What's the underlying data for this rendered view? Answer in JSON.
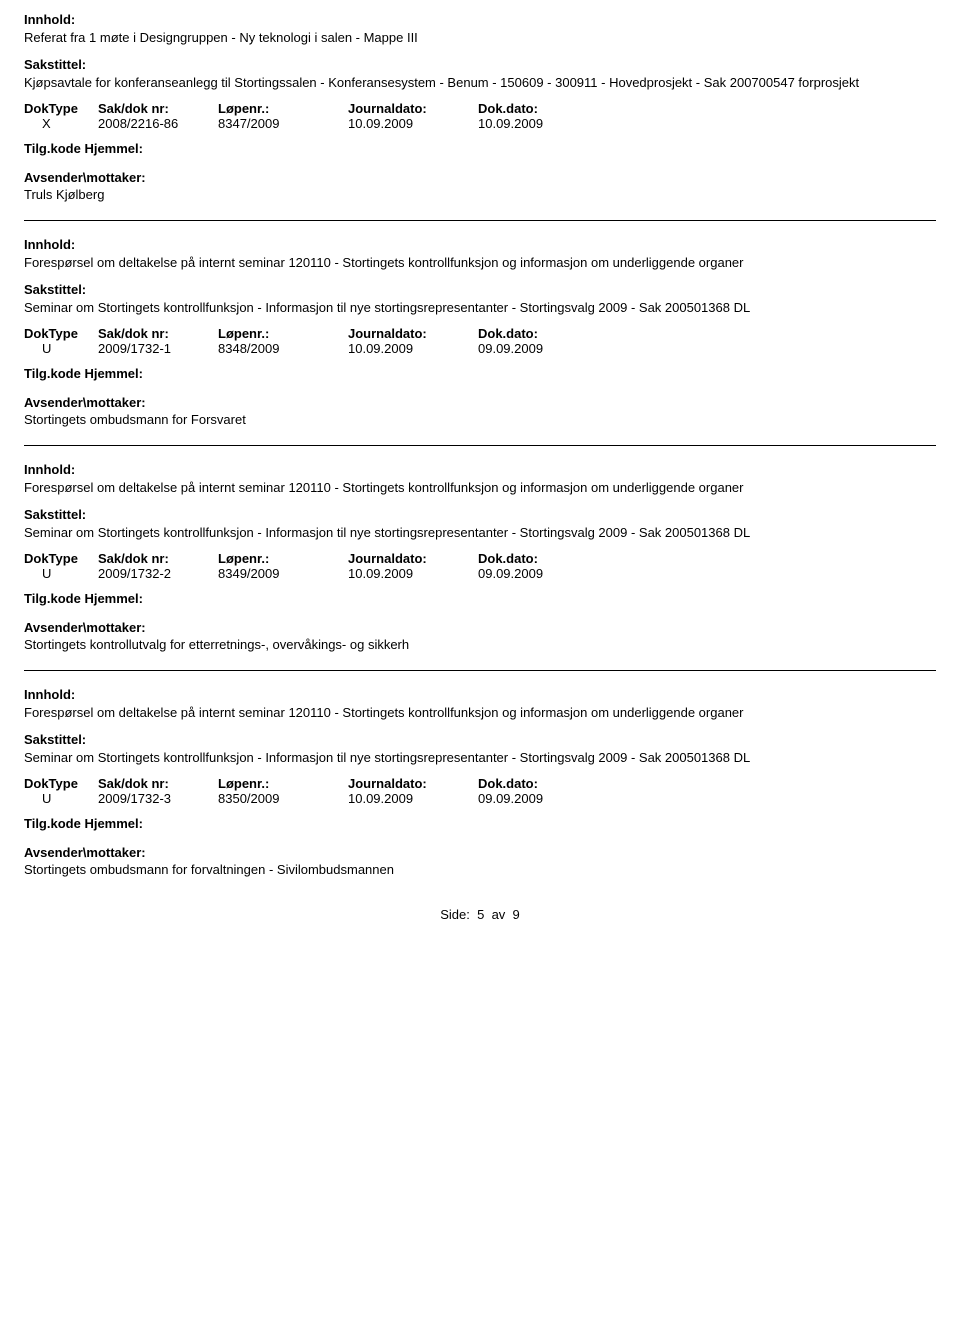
{
  "labels": {
    "innhold": "Innhold:",
    "sakstittel": "Sakstittel:",
    "doktype": "DokType",
    "sakdoknr": "Sak/dok nr:",
    "lopenr": "Løpenr.:",
    "journaldato": "Journaldato:",
    "dokdato": "Dok.dato:",
    "tilgkode": "Tilg.kode",
    "hjemmel": "Hjemmel:",
    "avsender": "Avsender\\mottaker:"
  },
  "entries": [
    {
      "innhold": "Referat fra 1 møte i Designgruppen - Ny teknologi i salen - Mappe III",
      "sakstittel": "Kjøpsavtale for konferanseanlegg til Stortingssalen - Konferansesystem - Benum - 150609 - 300911 - Hovedprosjekt - Sak 200700547 forprosjekt",
      "doktype": "X",
      "sakdoknr": "2008/2216-86",
      "lopenr": "8347/2009",
      "journaldato": "10.09.2009",
      "dokdato": "10.09.2009",
      "avsender": "Truls Kjølberg"
    },
    {
      "innhold": "Forespørsel om deltakelse på internt seminar 120110 - Stortingets kontrollfunksjon og informasjon om underliggende organer",
      "sakstittel": "Seminar om Stortingets kontrollfunksjon - Informasjon til nye stortingsrepresentanter - Stortingsvalg 2009 - Sak 200501368 DL",
      "doktype": "U",
      "sakdoknr": "2009/1732-1",
      "lopenr": "8348/2009",
      "journaldato": "10.09.2009",
      "dokdato": "09.09.2009",
      "avsender": "Stortingets ombudsmann for Forsvaret"
    },
    {
      "innhold": "Forespørsel om deltakelse på internt seminar 120110 - Stortingets kontrollfunksjon og informasjon om underliggende organer",
      "sakstittel": "Seminar om Stortingets kontrollfunksjon - Informasjon til nye stortingsrepresentanter - Stortingsvalg 2009 - Sak 200501368 DL",
      "doktype": "U",
      "sakdoknr": "2009/1732-2",
      "lopenr": "8349/2009",
      "journaldato": "10.09.2009",
      "dokdato": "09.09.2009",
      "avsender": "Stortingets kontrollutvalg for etterretnings-, overvåkings- og sikkerh"
    },
    {
      "innhold": "Forespørsel om deltakelse på internt seminar 120110 - Stortingets kontrollfunksjon og informasjon om underliggende organer",
      "sakstittel": "Seminar om Stortingets kontrollfunksjon - Informasjon til nye stortingsrepresentanter - Stortingsvalg 2009 - Sak 200501368 DL",
      "doktype": "U",
      "sakdoknr": "2009/1732-3",
      "lopenr": "8350/2009",
      "journaldato": "10.09.2009",
      "dokdato": "09.09.2009",
      "avsender": "Stortingets ombudsmann for forvaltningen - Sivilombudsmannen"
    }
  ],
  "footer": {
    "side": "Side:",
    "page": "5",
    "av": "av",
    "total": "9"
  }
}
